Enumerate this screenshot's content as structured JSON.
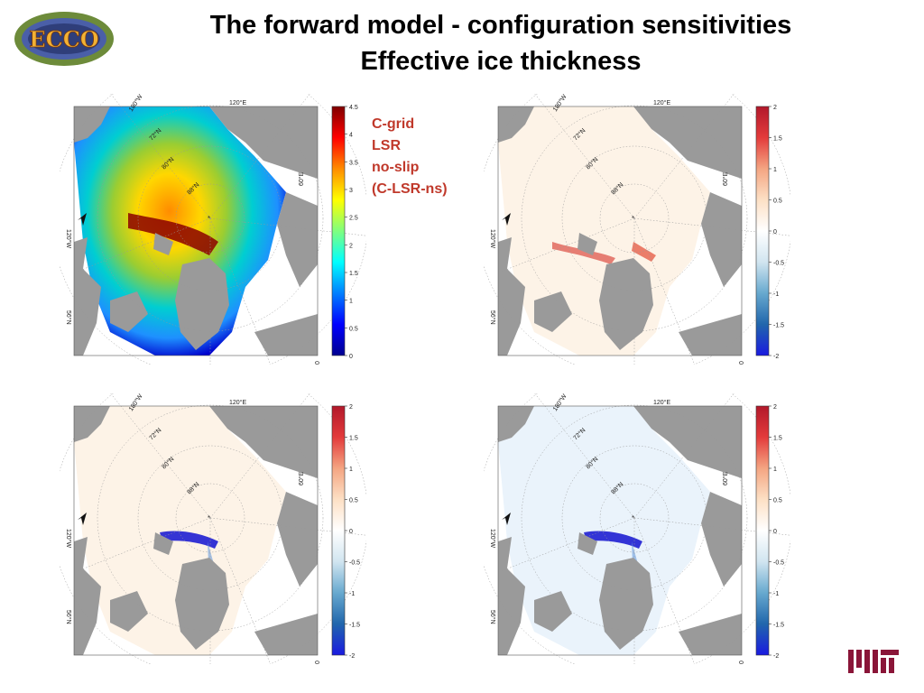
{
  "header": {
    "title_line1": "The forward model - configuration sensitivities",
    "title_line2": "Effective ice thickness"
  },
  "logos": {
    "ecco_text": "ECCO",
    "mit_text": "MIT"
  },
  "annotation": {
    "lines": [
      "C-grid",
      "LSR",
      "no-slip",
      "(C-LSR-ns)"
    ],
    "color": "#c0392b"
  },
  "map_labels": [
    "180°W",
    "60°W",
    "120°E",
    "72°N",
    "80°N",
    "88°N",
    "60°E",
    "120°W",
    "56°N",
    "60°W",
    "0"
  ],
  "panels": [
    {
      "id": "top-left",
      "type": "absolute",
      "colorbar_ticks": [
        "4.5",
        "4",
        "3.5",
        "3",
        "2.5",
        "2",
        "1.5",
        "1",
        "0.5",
        "0"
      ]
    },
    {
      "id": "top-right",
      "type": "difference",
      "colorbar_ticks": [
        "2",
        "1.5",
        "1",
        "0.5",
        "0",
        "-0.5",
        "-1",
        "-1.5",
        "-2"
      ]
    },
    {
      "id": "bottom-left",
      "type": "difference",
      "colorbar_ticks": [
        "2",
        "1.5",
        "1",
        "0.5",
        "0",
        "-0.5",
        "-1",
        "-1.5",
        "-2"
      ]
    },
    {
      "id": "bottom-right",
      "type": "difference",
      "colorbar_ticks": [
        "2",
        "1.5",
        "1",
        "0.5",
        "0",
        "-0.5",
        "-1",
        "-1.5",
        "-2"
      ]
    }
  ]
}
